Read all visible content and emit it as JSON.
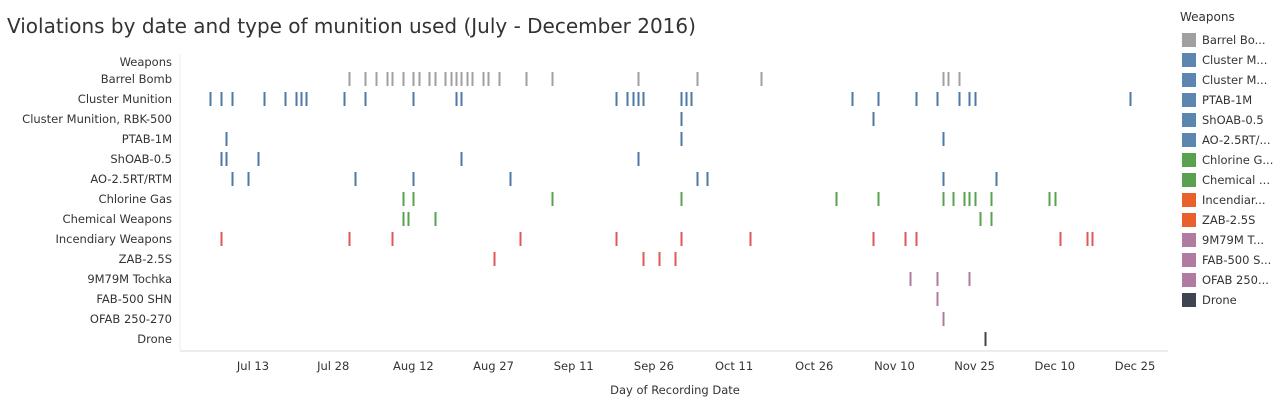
{
  "title": "Violations by date and type of munition used (July - December 2016)",
  "chart_data": {
    "type": "scatter",
    "mark": "tick",
    "row_header": "Weapons",
    "xlabel": "Day of Recording Date",
    "x_ticks": [
      "Jul 13",
      "Jul 28",
      "Aug 12",
      "Aug 27",
      "Sep 11",
      "Sep 26",
      "Oct 11",
      "Oct 26",
      "Nov 10",
      "Nov 25",
      "Dec 10",
      "Dec 25"
    ],
    "xlim": [
      "2016-06-26",
      "2016-12-29"
    ],
    "grid": false,
    "legend_position": "right",
    "series": [
      {
        "name": "Barrel Bomb",
        "color": "#a0a0a0",
        "dates": [
          "2016-07-31",
          "2016-08-03",
          "2016-08-05",
          "2016-08-07",
          "2016-08-08",
          "2016-08-10",
          "2016-08-12",
          "2016-08-13",
          "2016-08-15",
          "2016-08-16",
          "2016-08-18",
          "2016-08-19",
          "2016-08-20",
          "2016-08-21",
          "2016-08-22",
          "2016-08-23",
          "2016-08-25",
          "2016-08-26",
          "2016-08-28",
          "2016-09-02",
          "2016-09-07",
          "2016-09-23",
          "2016-10-04",
          "2016-10-16",
          "2016-11-19",
          "2016-11-20",
          "2016-11-22"
        ]
      },
      {
        "name": "Cluster Munition",
        "color": "#4e79a7",
        "dates": [
          "2016-07-05",
          "2016-07-07",
          "2016-07-09",
          "2016-07-15",
          "2016-07-19",
          "2016-07-21",
          "2016-07-22",
          "2016-07-23",
          "2016-07-30",
          "2016-08-03",
          "2016-08-12",
          "2016-08-20",
          "2016-08-21",
          "2016-09-19",
          "2016-09-21",
          "2016-09-22",
          "2016-09-23",
          "2016-09-24",
          "2016-10-01",
          "2016-10-02",
          "2016-10-03",
          "2016-11-02",
          "2016-11-07",
          "2016-11-14",
          "2016-11-18",
          "2016-11-22",
          "2016-11-24",
          "2016-11-25",
          "2016-12-24"
        ]
      },
      {
        "name": "Cluster Munition, RBK-500",
        "color": "#4e79a7",
        "dates": [
          "2016-10-01",
          "2016-11-06"
        ]
      },
      {
        "name": "PTAB-1M",
        "color": "#4e79a7",
        "dates": [
          "2016-07-08",
          "2016-10-01",
          "2016-11-19"
        ]
      },
      {
        "name": "ShOAB-0.5",
        "color": "#4e79a7",
        "dates": [
          "2016-07-07",
          "2016-07-08",
          "2016-07-14",
          "2016-08-21",
          "2016-09-23"
        ]
      },
      {
        "name": "AO-2.5RT/RTM",
        "color": "#4e79a7",
        "dates": [
          "2016-07-09",
          "2016-07-12",
          "2016-08-01",
          "2016-08-12",
          "2016-08-30",
          "2016-10-04",
          "2016-10-06",
          "2016-11-19",
          "2016-11-29"
        ]
      },
      {
        "name": "Chlorine Gas",
        "color": "#59a14f",
        "dates": [
          "2016-08-10",
          "2016-08-12",
          "2016-09-07",
          "2016-10-01",
          "2016-10-30",
          "2016-11-07",
          "2016-11-19",
          "2016-11-21",
          "2016-11-23",
          "2016-11-24",
          "2016-11-25",
          "2016-11-28",
          "2016-12-09",
          "2016-12-10"
        ]
      },
      {
        "name": "Chemical Weapons",
        "color": "#59a14f",
        "dates": [
          "2016-08-10",
          "2016-08-11",
          "2016-08-16",
          "2016-11-26",
          "2016-11-28"
        ]
      },
      {
        "name": "Incendiary Weapons",
        "color": "#e15759",
        "dates": [
          "2016-07-07",
          "2016-07-31",
          "2016-08-08",
          "2016-09-01",
          "2016-09-19",
          "2016-10-01",
          "2016-10-14",
          "2016-11-06",
          "2016-11-12",
          "2016-11-14",
          "2016-12-11",
          "2016-12-16",
          "2016-12-17"
        ]
      },
      {
        "name": "ZAB-2.5S",
        "color": "#e15759",
        "dates": [
          "2016-08-27",
          "2016-09-24",
          "2016-09-27",
          "2016-09-30"
        ]
      },
      {
        "name": "9M79M Tochka",
        "color": "#b07aa1",
        "dates": [
          "2016-11-13",
          "2016-11-18",
          "2016-11-24"
        ]
      },
      {
        "name": "FAB-500 SHN",
        "color": "#b07aa1",
        "dates": [
          "2016-11-18"
        ]
      },
      {
        "name": "OFAB 250-270",
        "color": "#b07aa1",
        "dates": [
          "2016-11-19"
        ]
      },
      {
        "name": "Drone",
        "color": "#3f4550",
        "dates": [
          "2016-11-27"
        ]
      }
    ]
  },
  "legend": {
    "title": "Weapons",
    "items": [
      {
        "label": "Barrel Bo...",
        "color": "#a0a0a0"
      },
      {
        "label": "Cluster M...",
        "color": "#5a86b0"
      },
      {
        "label": "Cluster M...",
        "color": "#5a86b0"
      },
      {
        "label": "PTAB-1M",
        "color": "#5a86b0"
      },
      {
        "label": "ShOAB-0.5",
        "color": "#5a86b0"
      },
      {
        "label": "AO-2.5RT/...",
        "color": "#5a86b0"
      },
      {
        "label": "Chlorine G...",
        "color": "#59a14f"
      },
      {
        "label": "Chemical ...",
        "color": "#59a14f"
      },
      {
        "label": "Incendiar...",
        "color": "#e8602c"
      },
      {
        "label": "ZAB-2.5S",
        "color": "#e8602c"
      },
      {
        "label": "9M79M T...",
        "color": "#b07aa1"
      },
      {
        "label": "FAB-500 S...",
        "color": "#b07aa1"
      },
      {
        "label": "OFAB 250...",
        "color": "#b07aa1"
      },
      {
        "label": "Drone",
        "color": "#3f4550"
      }
    ]
  }
}
